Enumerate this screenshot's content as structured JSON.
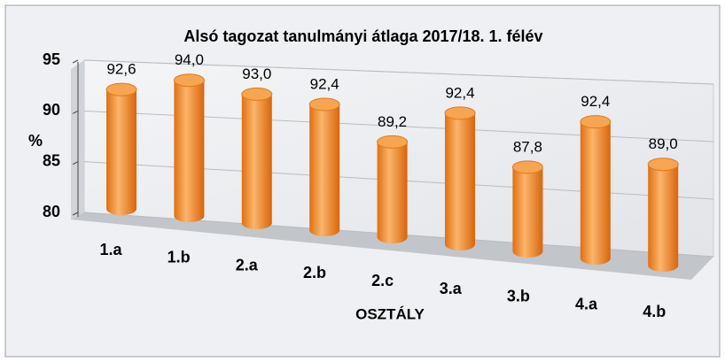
{
  "chart_data": {
    "type": "bar",
    "title": "Alsó tagozat tanulmányi átlaga 2017/18. 1. félév",
    "x_label": "OSZTÁLY",
    "y_label": "%",
    "categories": [
      "1.a",
      "1.b",
      "2.a",
      "2.b",
      "2.c",
      "3.a",
      "3.b",
      "4.a",
      "4.b"
    ],
    "values": [
      92.6,
      94.0,
      93.0,
      92.4,
      89.2,
      92.4,
      87.8,
      92.4,
      89.0
    ],
    "value_labels": [
      "92,6",
      "94,0",
      "93,0",
      "92,4",
      "89,2",
      "92,4",
      "87,8",
      "92,4",
      "89,0"
    ],
    "color": "#f28c28",
    "ylim": [
      80,
      95
    ],
    "yticks": [
      80,
      85,
      90,
      95
    ],
    "grid": true
  }
}
